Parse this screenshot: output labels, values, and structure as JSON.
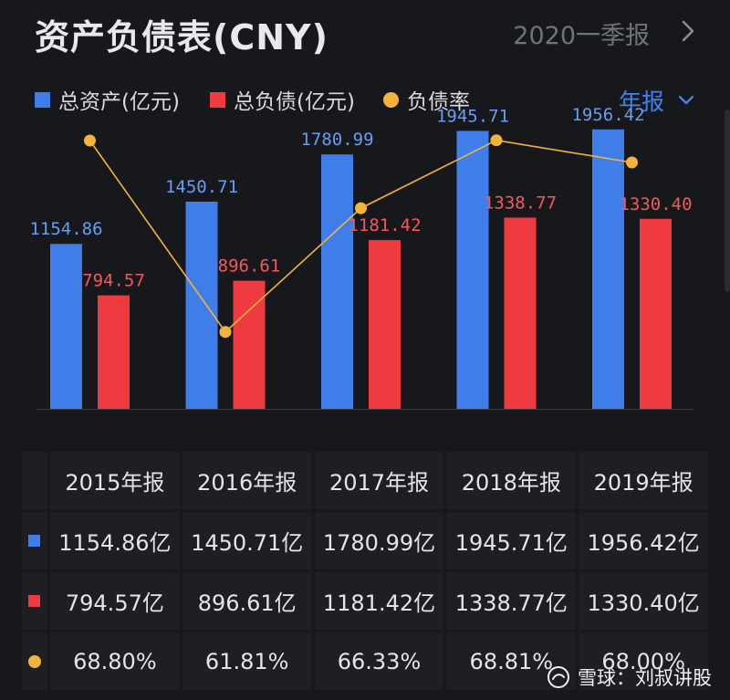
{
  "header": {
    "title": "资产负债表(CNY)",
    "period": "2020一季报"
  },
  "legend": {
    "items": [
      {
        "label": "总资产(亿元)",
        "color": "#3f7ee8"
      },
      {
        "label": "总负债(亿元)",
        "color": "#ee3b3f"
      },
      {
        "label": "负债率",
        "color": "#f4b43c"
      }
    ],
    "report_type": "年报"
  },
  "chart_data": {
    "type": "bar",
    "categories": [
      "2015年报",
      "2016年报",
      "2017年报",
      "2018年报",
      "2019年报"
    ],
    "series": [
      {
        "name": "总资产(亿元)",
        "type": "bar",
        "color": "#3f7ee8",
        "label_color": "#6a9cf0",
        "values": [
          1154.86,
          1450.71,
          1780.99,
          1945.71,
          1956.42
        ],
        "labels": [
          "1154.86",
          "1450.71",
          "1780.99",
          "1945.71",
          "1956.42"
        ]
      },
      {
        "name": "总负债(亿元)",
        "type": "bar",
        "color": "#ee3b3f",
        "label_color": "#f0595d",
        "values": [
          794.57,
          896.61,
          1181.42,
          1338.77,
          1330.4
        ],
        "labels": [
          "794.57",
          "896.61",
          "1181.42",
          "1338.77",
          "1330.40"
        ]
      },
      {
        "name": "负债率",
        "type": "line",
        "color": "#f4b43c",
        "values": [
          68.8,
          61.81,
          66.33,
          68.81,
          68.0
        ]
      }
    ],
    "bar_ylim": [
      0,
      2300
    ],
    "line_ylim": [
      59,
      71
    ],
    "title": "资产负债表(CNY)"
  },
  "table": {
    "headers": [
      "2015年报",
      "2016年报",
      "2017年报",
      "2018年报",
      "2019年报"
    ],
    "rows": [
      {
        "marker": "square",
        "color": "#3f7ee8",
        "cells": [
          "1154.86亿",
          "1450.71亿",
          "1780.99亿",
          "1945.71亿",
          "1956.42亿"
        ]
      },
      {
        "marker": "square",
        "color": "#ee3b3f",
        "cells": [
          "794.57亿",
          "896.61亿",
          "1181.42亿",
          "1338.77亿",
          "1330.40亿"
        ]
      },
      {
        "marker": "dot",
        "color": "#f4b43c",
        "cells": [
          "68.80%",
          "61.81%",
          "66.33%",
          "68.81%",
          "68.00%"
        ]
      }
    ]
  },
  "watermark": {
    "text": "雪球：刘叔讲股"
  }
}
